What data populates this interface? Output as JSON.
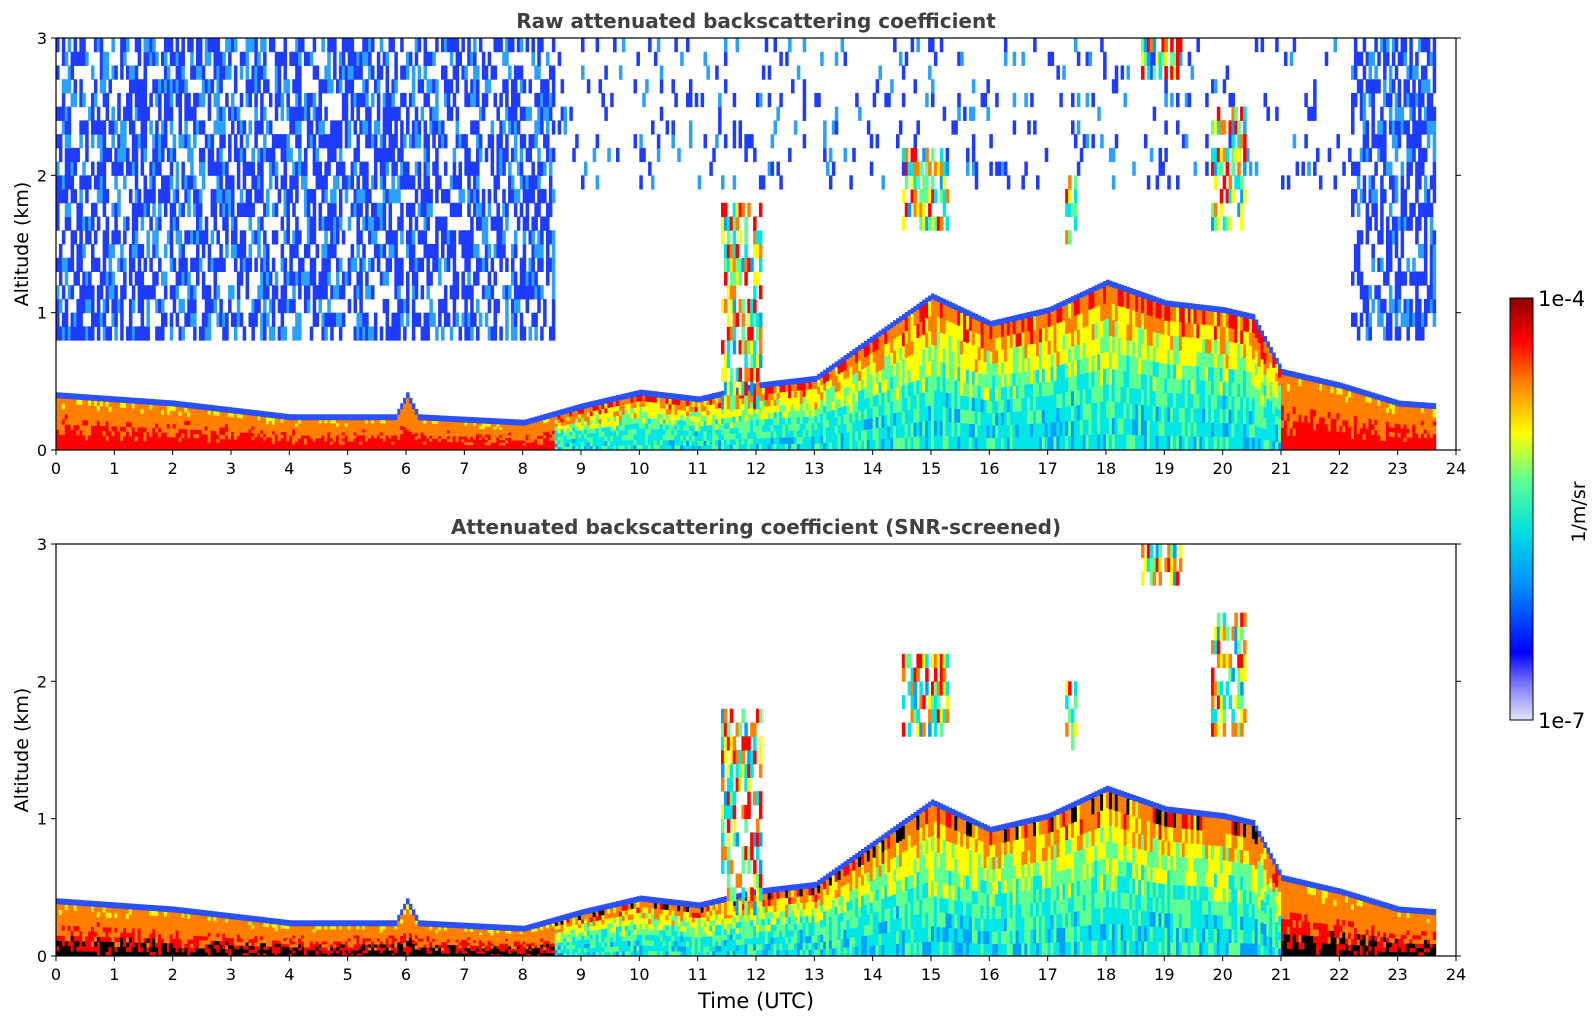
{
  "figure": {
    "colorbar": {
      "label": "1/m/sr",
      "max_label": "1e-4",
      "min_label": "1e-7",
      "scale": "log",
      "range": [
        1e-07,
        0.0001
      ],
      "colormap": [
        "#e6e6f8",
        "#0000ff",
        "#00a0ff",
        "#00e6e6",
        "#60ff90",
        "#ffff00",
        "#ff8000",
        "#ff0000",
        "#8b0000"
      ]
    },
    "xlabel": "Time (UTC)"
  },
  "chart_data": [
    {
      "type": "heatmap",
      "title": "Raw attenuated backscattering coefficient",
      "xlabel": "",
      "ylabel": "Altitude (km)",
      "xlim": [
        0,
        24
      ],
      "ylim": [
        0,
        3
      ],
      "xticks": [
        "0",
        "1",
        "2",
        "3",
        "4",
        "5",
        "6",
        "7",
        "8",
        "9",
        "10",
        "11",
        "12",
        "13",
        "14",
        "15",
        "16",
        "17",
        "18",
        "19",
        "20",
        "21",
        "22",
        "23",
        "24"
      ],
      "yticks": [
        "0",
        "1",
        "2",
        "3"
      ],
      "data_end_time": 23.65,
      "boundary_layer_top_km": [
        [
          0,
          0.38
        ],
        [
          2,
          0.32
        ],
        [
          4,
          0.22
        ],
        [
          5.8,
          0.22
        ],
        [
          6,
          0.38
        ],
        [
          6.2,
          0.22
        ],
        [
          8,
          0.18
        ],
        [
          9,
          0.3
        ],
        [
          10,
          0.4
        ],
        [
          11,
          0.35
        ],
        [
          12,
          0.45
        ],
        [
          13,
          0.5
        ],
        [
          14,
          0.8
        ],
        [
          15,
          1.1
        ],
        [
          16,
          0.9
        ],
        [
          17,
          1.0
        ],
        [
          18,
          1.2
        ],
        [
          19,
          1.05
        ],
        [
          20,
          1.0
        ],
        [
          20.5,
          0.95
        ],
        [
          21,
          0.55
        ],
        [
          22,
          0.45
        ],
        [
          23,
          0.32
        ],
        [
          23.65,
          0.3
        ]
      ],
      "noise_top_km": [
        [
          0,
          3
        ],
        [
          23.65,
          3
        ]
      ],
      "cloud_layers": [
        {
          "time": [
            11.4,
            12.1
          ],
          "alt_km": [
            0.3,
            1.8
          ]
        },
        {
          "time": [
            14.5,
            15.3
          ],
          "alt_km": [
            1.6,
            2.2
          ]
        },
        {
          "time": [
            17.3,
            17.5
          ],
          "alt_km": [
            1.5,
            2.0
          ]
        },
        {
          "time": [
            18.6,
            19.3
          ],
          "alt_km": [
            2.7,
            3.0
          ]
        },
        {
          "time": [
            19.8,
            20.4
          ],
          "alt_km": [
            1.6,
            2.5
          ]
        }
      ]
    },
    {
      "type": "heatmap",
      "title": "Attenuated backscattering coefficient (SNR-screened)",
      "xlabel": "Time (UTC)",
      "ylabel": "Altitude (km)",
      "xlim": [
        0,
        24
      ],
      "ylim": [
        0,
        3
      ],
      "xticks": [
        "0",
        "1",
        "2",
        "3",
        "4",
        "5",
        "6",
        "7",
        "8",
        "9",
        "10",
        "11",
        "12",
        "13",
        "14",
        "15",
        "16",
        "17",
        "18",
        "19",
        "20",
        "21",
        "22",
        "23",
        "24"
      ],
      "yticks": [
        "0",
        "1",
        "2",
        "3"
      ],
      "data_end_time": 23.65,
      "boundary_layer_top_km": [
        [
          0,
          0.38
        ],
        [
          2,
          0.32
        ],
        [
          4,
          0.22
        ],
        [
          5.8,
          0.22
        ],
        [
          6,
          0.38
        ],
        [
          6.2,
          0.22
        ],
        [
          8,
          0.18
        ],
        [
          9,
          0.3
        ],
        [
          10,
          0.4
        ],
        [
          11,
          0.35
        ],
        [
          12,
          0.45
        ],
        [
          13,
          0.5
        ],
        [
          14,
          0.8
        ],
        [
          15,
          1.1
        ],
        [
          16,
          0.9
        ],
        [
          17,
          1.0
        ],
        [
          18,
          1.2
        ],
        [
          19,
          1.05
        ],
        [
          20,
          1.0
        ],
        [
          20.5,
          0.95
        ],
        [
          21,
          0.55
        ],
        [
          22,
          0.45
        ],
        [
          23,
          0.32
        ],
        [
          23.65,
          0.3
        ]
      ],
      "cloud_layers": [
        {
          "time": [
            11.4,
            12.1
          ],
          "alt_km": [
            0.3,
            1.8
          ]
        },
        {
          "time": [
            14.5,
            15.3
          ],
          "alt_km": [
            1.6,
            2.2
          ]
        },
        {
          "time": [
            17.3,
            17.5
          ],
          "alt_km": [
            1.5,
            2.0
          ]
        },
        {
          "time": [
            18.6,
            19.3
          ],
          "alt_km": [
            2.7,
            3.0
          ]
        },
        {
          "time": [
            19.8,
            20.4
          ],
          "alt_km": [
            1.6,
            2.5
          ]
        }
      ]
    }
  ]
}
